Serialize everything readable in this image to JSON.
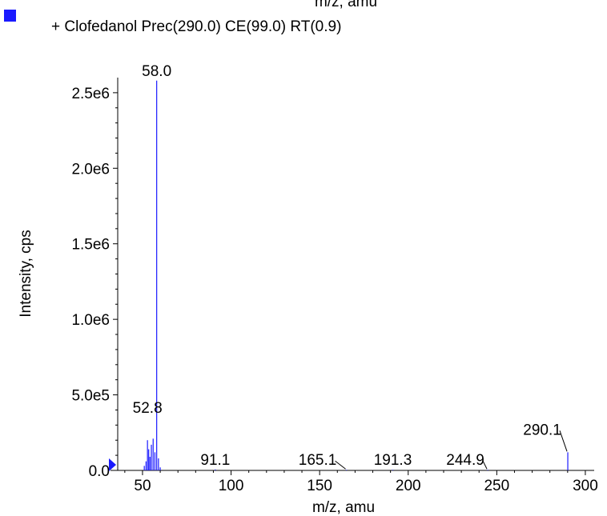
{
  "top_cut_label": "m/z, amu",
  "legend": {
    "marker_color": "#1a1aff",
    "text": "+ Clofedanol Prec(290.0) CE(99.0) RT(0.9)"
  },
  "chart_data": {
    "type": "bar",
    "title": "",
    "xlabel": "m/z, amu",
    "ylabel": "Intensity, cps",
    "xlim": [
      36,
      305
    ],
    "ylim": [
      0,
      2600000
    ],
    "x_ticks": [
      50,
      100,
      150,
      200,
      250,
      300
    ],
    "x_tick_labels": [
      "50",
      "100",
      "150",
      "200",
      "250",
      "300"
    ],
    "y_ticks": [
      0,
      500000,
      1000000,
      1500000,
      2000000,
      2500000
    ],
    "y_tick_labels": [
      "0.0",
      "5.0e5",
      "1.0e6",
      "1.5e6",
      "2.0e6",
      "2.5e6"
    ],
    "series_color": "#1a1aff",
    "peaks": [
      {
        "x": 51.0,
        "y": 30000
      },
      {
        "x": 52.0,
        "y": 60000
      },
      {
        "x": 52.8,
        "y": 200000
      },
      {
        "x": 53.5,
        "y": 140000
      },
      {
        "x": 54.2,
        "y": 90000
      },
      {
        "x": 55.0,
        "y": 170000
      },
      {
        "x": 56.0,
        "y": 210000
      },
      {
        "x": 57.0,
        "y": 120000
      },
      {
        "x": 58.0,
        "y": 2580000
      },
      {
        "x": 59.0,
        "y": 80000
      },
      {
        "x": 60.0,
        "y": 20000
      },
      {
        "x": 91.1,
        "y": 6000
      },
      {
        "x": 165.1,
        "y": 4000
      },
      {
        "x": 191.3,
        "y": 4000
      },
      {
        "x": 244.9,
        "y": 4000
      },
      {
        "x": 290.1,
        "y": 120000
      }
    ],
    "annotations": [
      {
        "text": "58.0",
        "x": 58.0,
        "y": 2580000
      },
      {
        "text": "52.8",
        "x": 52.8,
        "y": 200000
      },
      {
        "text": "91.1",
        "x": 91.1,
        "y": 6000
      },
      {
        "text": "165.1",
        "x": 165.1,
        "y": 4000
      },
      {
        "text": "191.3",
        "x": 191.3,
        "y": 4000
      },
      {
        "text": "244.9",
        "x": 244.9,
        "y": 4000
      },
      {
        "text": "290.1",
        "x": 290.1,
        "y": 120000
      }
    ],
    "threshold_marker": {
      "y": 0
    }
  }
}
